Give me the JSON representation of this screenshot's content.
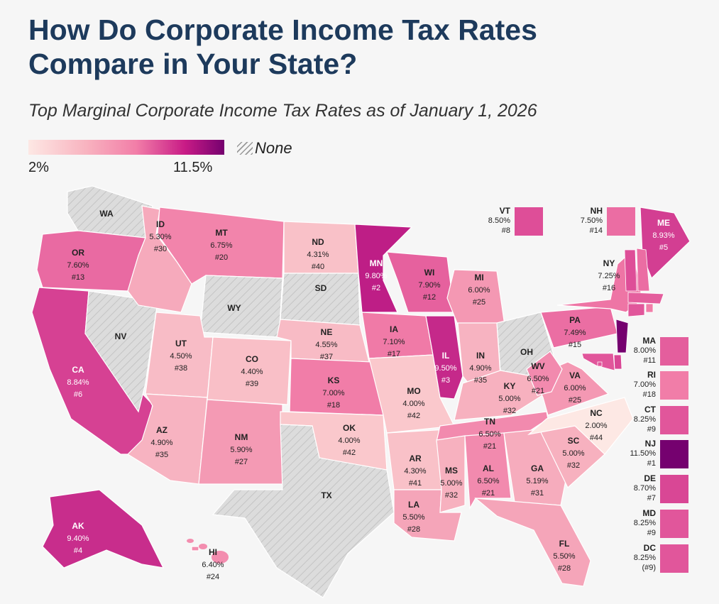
{
  "title": "How Do Corporate Income Tax Rates Compare in Your State?",
  "subtitle": "Top Marginal Corporate Income Tax Rates as of January 1, 2026",
  "legend": {
    "min_label": "2%",
    "max_label": "11.5%",
    "none_label": "None",
    "min": 2,
    "max": 11.5,
    "none_pattern": "gray-hatched"
  },
  "colors": {
    "title": "#1d3a5c",
    "low": "#fde8e4",
    "high": "#75016f",
    "none": "#dcdcdc"
  },
  "states": [
    {
      "abbr": "WA",
      "rate": null,
      "rank": null
    },
    {
      "abbr": "OR",
      "rate": "7.60%",
      "rank": "#13"
    },
    {
      "abbr": "CA",
      "rate": "8.84%",
      "rank": "#6"
    },
    {
      "abbr": "NV",
      "rate": null,
      "rank": null
    },
    {
      "abbr": "ID",
      "rate": "5.30%",
      "rank": "#30"
    },
    {
      "abbr": "MT",
      "rate": "6.75%",
      "rank": "#20"
    },
    {
      "abbr": "WY",
      "rate": null,
      "rank": null
    },
    {
      "abbr": "UT",
      "rate": "4.50%",
      "rank": "#38"
    },
    {
      "abbr": "CO",
      "rate": "4.40%",
      "rank": "#39"
    },
    {
      "abbr": "AZ",
      "rate": "4.90%",
      "rank": "#35"
    },
    {
      "abbr": "NM",
      "rate": "5.90%",
      "rank": "#27"
    },
    {
      "abbr": "ND",
      "rate": "4.31%",
      "rank": "#40"
    },
    {
      "abbr": "SD",
      "rate": null,
      "rank": null
    },
    {
      "abbr": "NE",
      "rate": "4.55%",
      "rank": "#37"
    },
    {
      "abbr": "KS",
      "rate": "7.00%",
      "rank": "#18"
    },
    {
      "abbr": "OK",
      "rate": "4.00%",
      "rank": "#42"
    },
    {
      "abbr": "TX",
      "rate": null,
      "rank": null
    },
    {
      "abbr": "MN",
      "rate": "9.80%",
      "rank": "#2"
    },
    {
      "abbr": "IA",
      "rate": "7.10%",
      "rank": "#17"
    },
    {
      "abbr": "MO",
      "rate": "4.00%",
      "rank": "#42"
    },
    {
      "abbr": "AR",
      "rate": "4.30%",
      "rank": "#41"
    },
    {
      "abbr": "LA",
      "rate": "5.50%",
      "rank": "#28"
    },
    {
      "abbr": "WI",
      "rate": "7.90%",
      "rank": "#12"
    },
    {
      "abbr": "IL",
      "rate": "9.50%",
      "rank": "#3"
    },
    {
      "abbr": "MI",
      "rate": "6.00%",
      "rank": "#25"
    },
    {
      "abbr": "IN",
      "rate": "4.90%",
      "rank": "#35"
    },
    {
      "abbr": "OH",
      "rate": null,
      "rank": null
    },
    {
      "abbr": "KY",
      "rate": "5.00%",
      "rank": "#32"
    },
    {
      "abbr": "TN",
      "rate": "6.50%",
      "rank": "#21"
    },
    {
      "abbr": "MS",
      "rate": "5.00%",
      "rank": "#32"
    },
    {
      "abbr": "AL",
      "rate": "6.50%",
      "rank": "#21"
    },
    {
      "abbr": "GA",
      "rate": "5.19%",
      "rank": "#31"
    },
    {
      "abbr": "FL",
      "rate": "5.50%",
      "rank": "#28"
    },
    {
      "abbr": "SC",
      "rate": "5.00%",
      "rank": "#32"
    },
    {
      "abbr": "NC",
      "rate": "2.00%",
      "rank": "#44"
    },
    {
      "abbr": "VA",
      "rate": "6.00%",
      "rank": "#25"
    },
    {
      "abbr": "WV",
      "rate": "6.50%",
      "rank": "#21"
    },
    {
      "abbr": "PA",
      "rate": "7.49%",
      "rank": "#15"
    },
    {
      "abbr": "NY",
      "rate": "7.25%",
      "rank": "#16"
    },
    {
      "abbr": "ME",
      "rate": "8.93%",
      "rank": "#5"
    },
    {
      "abbr": "AK",
      "rate": "9.40%",
      "rank": "#4"
    },
    {
      "abbr": "HI",
      "rate": "6.40%",
      "rank": "#24"
    }
  ],
  "callouts": [
    {
      "abbr": "VT",
      "rate": "8.50%",
      "rank": "#8"
    },
    {
      "abbr": "NH",
      "rate": "7.50%",
      "rank": "#14"
    },
    {
      "abbr": "MA",
      "rate": "8.00%",
      "rank": "#11"
    },
    {
      "abbr": "RI",
      "rate": "7.00%",
      "rank": "#18"
    },
    {
      "abbr": "CT",
      "rate": "8.25%",
      "rank": "#9"
    },
    {
      "abbr": "NJ",
      "rate": "11.50%",
      "rank": "#1"
    },
    {
      "abbr": "DE",
      "rate": "8.70%",
      "rank": "#7"
    },
    {
      "abbr": "MD",
      "rate": "8.25%",
      "rank": "#9"
    },
    {
      "abbr": "DC",
      "rate": "8.25%",
      "rank": "(#9)"
    }
  ]
}
